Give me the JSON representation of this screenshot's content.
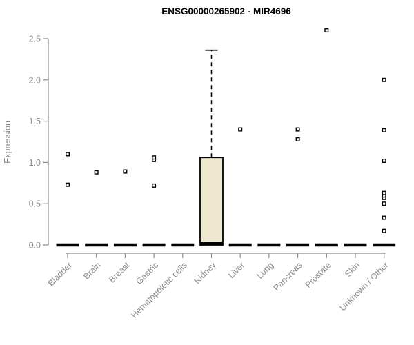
{
  "chart_data": {
    "type": "boxplot",
    "title": "ENSG00000265902 - MIR4696",
    "ylabel": "Expression",
    "xlabel": "",
    "ylim": [
      0,
      2.5
    ],
    "yticks": [
      0.0,
      0.5,
      1.0,
      1.5,
      2.0,
      2.5
    ],
    "grid": false,
    "legend": false,
    "categories": [
      "Bladder",
      "Brain",
      "Breast",
      "Gastric",
      "Hematopoietic cells",
      "Kidney",
      "Liver",
      "Lung",
      "Pancreas",
      "Prostate",
      "Skin",
      "Unknown / Other"
    ],
    "boxes": [
      {
        "category": "Bladder",
        "q1": 0,
        "median": 0,
        "q3": 0,
        "whisker_low": 0,
        "whisker_high": 0,
        "outliers": [
          0.73,
          1.1
        ]
      },
      {
        "category": "Brain",
        "q1": 0,
        "median": 0,
        "q3": 0,
        "whisker_low": 0,
        "whisker_high": 0,
        "outliers": [
          0.88
        ]
      },
      {
        "category": "Breast",
        "q1": 0,
        "median": 0,
        "q3": 0,
        "whisker_low": 0,
        "whisker_high": 0,
        "outliers": [
          0.89
        ]
      },
      {
        "category": "Gastric",
        "q1": 0,
        "median": 0,
        "q3": 0,
        "whisker_low": 0,
        "whisker_high": 0,
        "outliers": [
          0.72,
          1.03,
          1.06
        ]
      },
      {
        "category": "Hematopoietic cells",
        "q1": 0,
        "median": 0,
        "q3": 0,
        "whisker_low": 0,
        "whisker_high": 0,
        "outliers": []
      },
      {
        "category": "Kidney",
        "q1": 0,
        "median": 0.02,
        "q3": 1.06,
        "whisker_low": 0,
        "whisker_high": 2.36,
        "outliers": []
      },
      {
        "category": "Liver",
        "q1": 0,
        "median": 0,
        "q3": 0,
        "whisker_low": 0,
        "whisker_high": 0,
        "outliers": [
          1.4
        ]
      },
      {
        "category": "Lung",
        "q1": 0,
        "median": 0,
        "q3": 0,
        "whisker_low": 0,
        "whisker_high": 0,
        "outliers": []
      },
      {
        "category": "Pancreas",
        "q1": 0,
        "median": 0,
        "q3": 0,
        "whisker_low": 0,
        "whisker_high": 0,
        "outliers": [
          1.28,
          1.4
        ]
      },
      {
        "category": "Prostate",
        "q1": 0,
        "median": 0,
        "q3": 0,
        "whisker_low": 0,
        "whisker_high": 0,
        "outliers": [
          2.6
        ]
      },
      {
        "category": "Skin",
        "q1": 0,
        "median": 0,
        "q3": 0,
        "whisker_low": 0,
        "whisker_high": 0,
        "outliers": []
      },
      {
        "category": "Unknown / Other",
        "q1": 0,
        "median": 0,
        "q3": 0,
        "whisker_low": 0,
        "whisker_high": 0,
        "outliers": [
          0.17,
          0.33,
          0.5,
          0.57,
          0.6,
          0.63,
          1.02,
          1.39,
          2.0
        ]
      }
    ],
    "colors": {
      "background": "#ffffff",
      "box_fill": "#ede8cf",
      "box_border": "#000000",
      "median": "#000000",
      "whisker": "#000000",
      "outlier": "#000000",
      "axis": "#8a8a8a",
      "tick_text": "#8a8a8a",
      "title_text": "#000000"
    }
  }
}
